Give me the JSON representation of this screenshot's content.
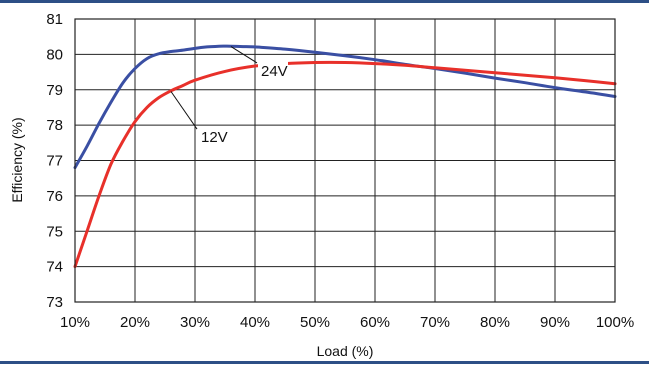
{
  "chart_data": {
    "type": "line",
    "title": "",
    "xlabel": "Load (%)",
    "ylabel": "Efficiency (%)",
    "xlim": [
      10,
      100
    ],
    "ylim": [
      73,
      81
    ],
    "x_ticks": [
      "10%",
      "20%",
      "30%",
      "40%",
      "50%",
      "60%",
      "70%",
      "80%",
      "90%",
      "100%"
    ],
    "y_ticks": [
      "73",
      "74",
      "75",
      "76",
      "77",
      "78",
      "79",
      "80",
      "81"
    ],
    "grid": true,
    "series": [
      {
        "name": "24V",
        "color": "#3a4fa3",
        "x": [
          10,
          12,
          14,
          16,
          18,
          20,
          22,
          24,
          26,
          28,
          30,
          32,
          34,
          36,
          38,
          40,
          45,
          50,
          55,
          60,
          65,
          70,
          75,
          80,
          85,
          90,
          95,
          100
        ],
        "y": [
          76.8,
          77.4,
          78.05,
          78.65,
          79.2,
          79.6,
          79.88,
          80.02,
          80.08,
          80.12,
          80.17,
          80.21,
          80.23,
          80.23,
          80.22,
          80.21,
          80.15,
          80.06,
          79.96,
          79.85,
          79.72,
          79.6,
          79.47,
          79.33,
          79.2,
          79.06,
          78.94,
          78.81
        ]
      },
      {
        "name": "12V",
        "color": "#e8302a",
        "x": [
          10,
          12,
          14,
          16,
          18,
          20,
          22,
          24,
          26,
          28,
          30,
          35,
          40,
          45,
          50,
          55,
          60,
          65,
          70,
          75,
          80,
          85,
          90,
          95,
          100
        ],
        "y": [
          74.0,
          75.0,
          76.0,
          76.9,
          77.55,
          78.1,
          78.5,
          78.78,
          78.97,
          79.12,
          79.27,
          79.52,
          79.67,
          79.74,
          79.77,
          79.77,
          79.74,
          79.69,
          79.62,
          79.55,
          79.48,
          79.41,
          79.34,
          79.26,
          79.17
        ]
      }
    ],
    "annotations": [
      {
        "text": "24V",
        "series": "24V",
        "point": [
          36,
          80.22
        ],
        "label_at": [
          41,
          79.42
        ]
      },
      {
        "text": "12V",
        "series": "12V",
        "point": [
          26,
          78.95
        ],
        "label_at": [
          31,
          77.55
        ]
      }
    ]
  }
}
